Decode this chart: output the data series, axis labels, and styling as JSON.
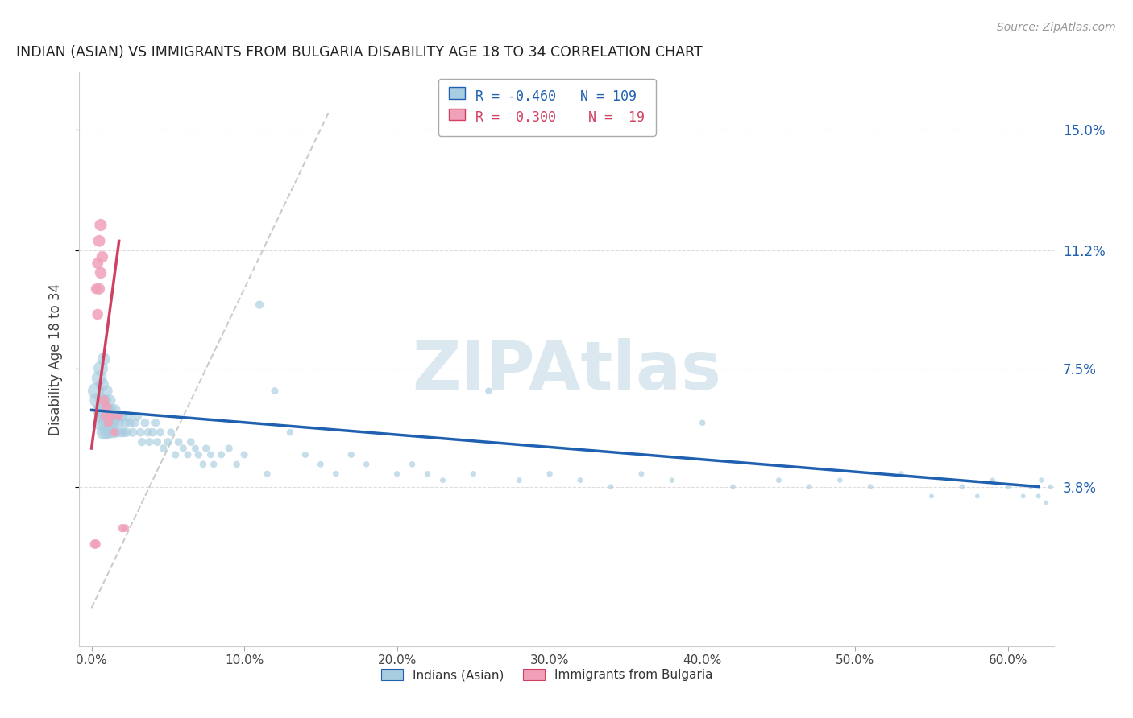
{
  "title": "INDIAN (ASIAN) VS IMMIGRANTS FROM BULGARIA DISABILITY AGE 18 TO 34 CORRELATION CHART",
  "source": "Source: ZipAtlas.com",
  "ylabel": "Disability Age 18 to 34",
  "ytick_labels": [
    "3.8%",
    "7.5%",
    "11.2%",
    "15.0%"
  ],
  "ytick_values": [
    0.038,
    0.075,
    0.112,
    0.15
  ],
  "xtick_labels": [
    "0.0%",
    "10.0%",
    "20.0%",
    "30.0%",
    "40.0%",
    "50.0%",
    "60.0%"
  ],
  "xtick_values": [
    0.0,
    0.1,
    0.2,
    0.3,
    0.4,
    0.5,
    0.6
  ],
  "xlim": [
    -0.008,
    0.63
  ],
  "ylim": [
    -0.012,
    0.168
  ],
  "blue_color": "#a8cce0",
  "pink_color": "#f0a0b8",
  "blue_line_color": "#2060b0",
  "pink_line_color": "#d04060",
  "gray_line_color": "#cccccc",
  "watermark": "ZIPAtlas",
  "watermark_color": "#dce8f0",
  "legend_R1": "-0.460",
  "legend_N1": "109",
  "legend_R2": "0.300",
  "legend_N2": "19",
  "legend_label1": "Indians (Asian)",
  "legend_label2": "Immigrants from Bulgaria",
  "blue_line_x0": 0.0,
  "blue_line_x1": 0.62,
  "blue_line_y0": 0.062,
  "blue_line_y1": 0.038,
  "pink_line_x0": 0.0,
  "pink_line_x1": 0.018,
  "pink_line_y0": 0.05,
  "pink_line_y1": 0.115,
  "gray_line_x0": 0.0,
  "gray_line_x1": 0.155,
  "gray_line_y0": 0.0,
  "gray_line_y1": 0.155,
  "blue_scatter_x": [
    0.003,
    0.004,
    0.005,
    0.005,
    0.006,
    0.006,
    0.007,
    0.007,
    0.007,
    0.008,
    0.008,
    0.008,
    0.009,
    0.009,
    0.009,
    0.01,
    0.01,
    0.01,
    0.01,
    0.011,
    0.011,
    0.011,
    0.012,
    0.012,
    0.013,
    0.013,
    0.014,
    0.014,
    0.015,
    0.015,
    0.016,
    0.017,
    0.018,
    0.019,
    0.02,
    0.021,
    0.022,
    0.023,
    0.024,
    0.025,
    0.027,
    0.028,
    0.03,
    0.032,
    0.033,
    0.035,
    0.037,
    0.038,
    0.04,
    0.042,
    0.043,
    0.045,
    0.047,
    0.05,
    0.052,
    0.055,
    0.057,
    0.06,
    0.063,
    0.065,
    0.068,
    0.07,
    0.073,
    0.075,
    0.078,
    0.08,
    0.085,
    0.09,
    0.095,
    0.1,
    0.11,
    0.115,
    0.12,
    0.13,
    0.14,
    0.15,
    0.16,
    0.17,
    0.18,
    0.2,
    0.21,
    0.22,
    0.23,
    0.25,
    0.26,
    0.28,
    0.3,
    0.32,
    0.34,
    0.36,
    0.38,
    0.4,
    0.42,
    0.45,
    0.47,
    0.49,
    0.51,
    0.53,
    0.55,
    0.57,
    0.58,
    0.59,
    0.6,
    0.61,
    0.615,
    0.62,
    0.622,
    0.625,
    0.628
  ],
  "blue_scatter_y": [
    0.068,
    0.065,
    0.072,
    0.062,
    0.058,
    0.075,
    0.06,
    0.065,
    0.07,
    0.055,
    0.062,
    0.078,
    0.058,
    0.06,
    0.065,
    0.055,
    0.06,
    0.062,
    0.068,
    0.058,
    0.062,
    0.055,
    0.06,
    0.065,
    0.058,
    0.062,
    0.055,
    0.06,
    0.058,
    0.062,
    0.055,
    0.06,
    0.058,
    0.055,
    0.06,
    0.055,
    0.058,
    0.055,
    0.06,
    0.058,
    0.055,
    0.058,
    0.06,
    0.055,
    0.052,
    0.058,
    0.055,
    0.052,
    0.055,
    0.058,
    0.052,
    0.055,
    0.05,
    0.052,
    0.055,
    0.048,
    0.052,
    0.05,
    0.048,
    0.052,
    0.05,
    0.048,
    0.045,
    0.05,
    0.048,
    0.045,
    0.048,
    0.05,
    0.045,
    0.048,
    0.095,
    0.042,
    0.068,
    0.055,
    0.048,
    0.045,
    0.042,
    0.048,
    0.045,
    0.042,
    0.045,
    0.042,
    0.04,
    0.042,
    0.068,
    0.04,
    0.042,
    0.04,
    0.038,
    0.042,
    0.04,
    0.058,
    0.038,
    0.04,
    0.038,
    0.04,
    0.038,
    0.042,
    0.035,
    0.038,
    0.035,
    0.04,
    0.038,
    0.035,
    0.038,
    0.035,
    0.04,
    0.033,
    0.038
  ],
  "blue_scatter_sizes": [
    220,
    200,
    180,
    160,
    190,
    170,
    150,
    160,
    140,
    170,
    150,
    130,
    160,
    140,
    120,
    170,
    150,
    130,
    110,
    140,
    120,
    100,
    130,
    110,
    120,
    100,
    110,
    90,
    100,
    120,
    90,
    100,
    85,
    80,
    90,
    75,
    80,
    70,
    75,
    70,
    65,
    70,
    65,
    60,
    55,
    62,
    58,
    52,
    58,
    55,
    50,
    55,
    48,
    52,
    48,
    45,
    48,
    45,
    42,
    48,
    42,
    45,
    40,
    45,
    40,
    38,
    42,
    45,
    38,
    42,
    55,
    35,
    42,
    38,
    35,
    32,
    30,
    35,
    30,
    28,
    30,
    28,
    25,
    28,
    38,
    25,
    28,
    25,
    22,
    25,
    22,
    30,
    20,
    25,
    22,
    22,
    20,
    25,
    18,
    22,
    18,
    22,
    20,
    18,
    20,
    18,
    22,
    15,
    18
  ],
  "pink_scatter_x": [
    0.002,
    0.003,
    0.003,
    0.004,
    0.004,
    0.005,
    0.005,
    0.006,
    0.006,
    0.007,
    0.008,
    0.009,
    0.01,
    0.011,
    0.013,
    0.015,
    0.018,
    0.02,
    0.022
  ],
  "pink_scatter_y": [
    0.02,
    0.02,
    0.1,
    0.092,
    0.108,
    0.1,
    0.115,
    0.105,
    0.12,
    0.11,
    0.065,
    0.06,
    0.063,
    0.058,
    0.06,
    0.055,
    0.06,
    0.025,
    0.025
  ],
  "pink_scatter_sizes": [
    70,
    65,
    90,
    95,
    100,
    105,
    115,
    110,
    120,
    110,
    80,
    70,
    75,
    65,
    60,
    55,
    50,
    55,
    50
  ]
}
